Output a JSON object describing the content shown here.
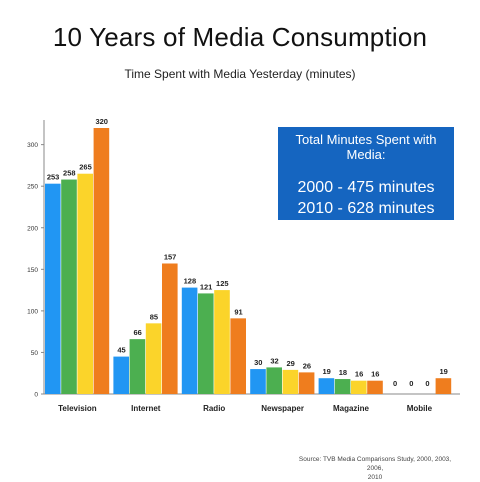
{
  "colors": {
    "series": [
      "#2196f3",
      "#4caf50",
      "#fbd42a",
      "#ef7d1e"
    ],
    "info_box": "#1565c0",
    "axis": "#888888"
  },
  "chart_data": {
    "type": "bar",
    "title": "10 Years of Media Consumption",
    "subtitle": "Time Spent with Media Yesterday (minutes)",
    "categories": [
      "Television",
      "Internet",
      "Radio",
      "Newspaper",
      "Magazine",
      "Mobile"
    ],
    "series": [
      {
        "values": [
          253,
          45,
          128,
          30,
          19,
          0
        ]
      },
      {
        "values": [
          258,
          66,
          121,
          32,
          18,
          0
        ]
      },
      {
        "values": [
          265,
          85,
          125,
          29,
          16,
          0
        ]
      },
      {
        "values": [
          320,
          157,
          91,
          26,
          16,
          19
        ]
      }
    ],
    "y_ticks": [
      0,
      50,
      100,
      150,
      200,
      250,
      300
    ],
    "ylim": [
      0,
      330
    ],
    "grid": false,
    "legend": "none",
    "data_labels": true
  },
  "info_box": {
    "heading": "Total Minutes Spent with Media:",
    "lines": [
      "2000 - 475 minutes",
      "2010 - 628 minutes"
    ]
  },
  "source": {
    "line1": "Source: TVB Media Comparisons Study, 2000, 2003, 2006,",
    "line2": "2010"
  }
}
